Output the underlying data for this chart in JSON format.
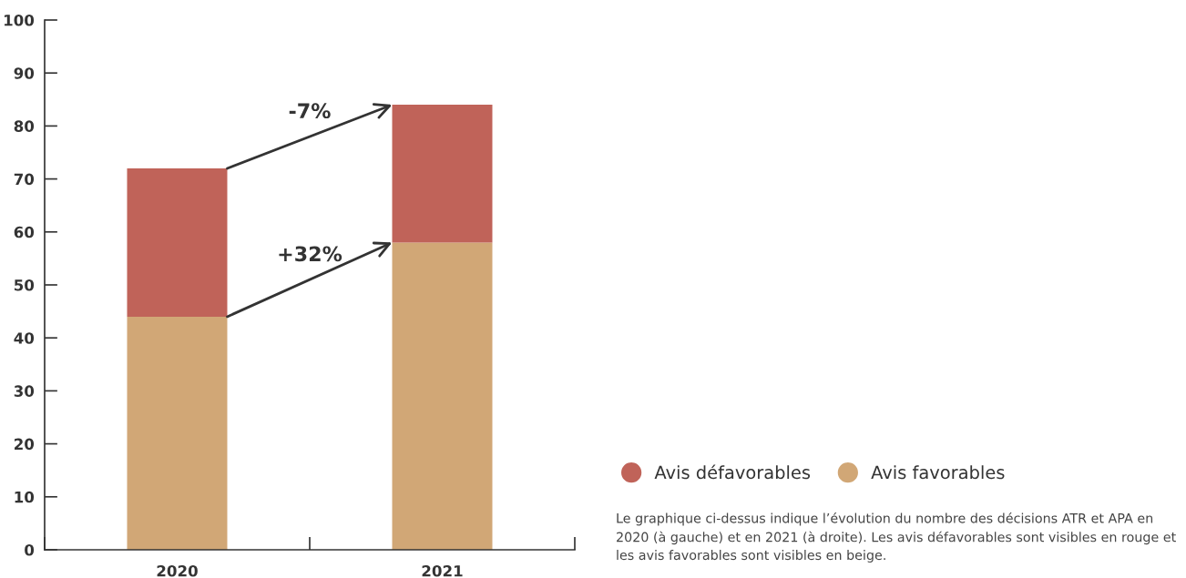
{
  "chart_data": {
    "type": "bar",
    "stacked": true,
    "categories": [
      "2020",
      "2021"
    ],
    "series": [
      {
        "name": "Avis favorables",
        "color": "#d1a776",
        "values": [
          44,
          58
        ]
      },
      {
        "name": "Avis défavorables",
        "color": "#c06359",
        "values": [
          28,
          26
        ]
      }
    ],
    "ylim": [
      0,
      100
    ],
    "yticks": [
      0,
      10,
      20,
      30,
      40,
      50,
      60,
      70,
      80,
      90,
      100
    ],
    "legend": "bottom right",
    "annotations": [
      "-7%",
      "+32%",
      "Le graphique ci-dessus indique l’évolution du nombre des décisions ATR et APA en 2020 (à gauche) et en 2021 (à droite). Les avis défavorables sont visibles en rouge et les avis favorables sont visibles en beige."
    ]
  }
}
